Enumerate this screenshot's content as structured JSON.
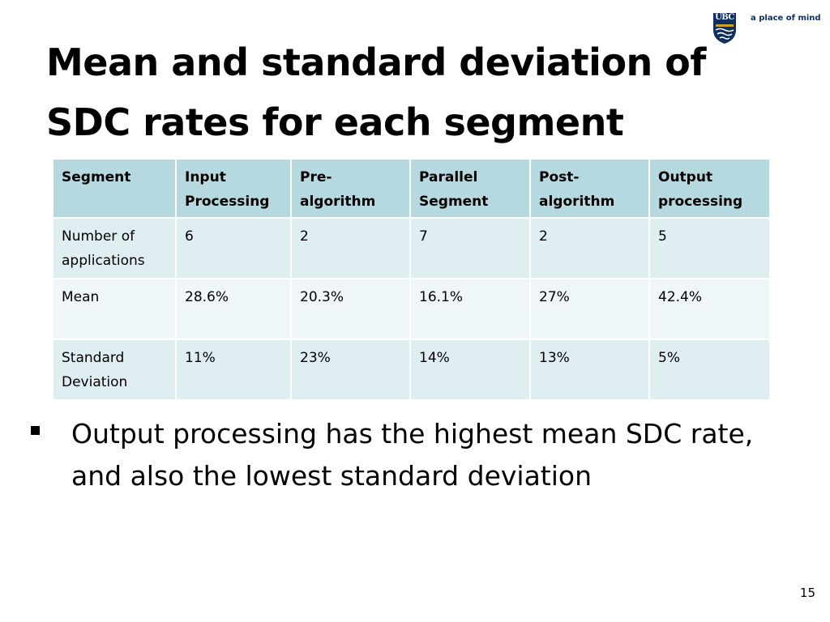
{
  "logo": {
    "text": "UBC",
    "tagline": "a place of mind",
    "colors": {
      "navy": "#0f2f5f",
      "gold": "#c9a227"
    }
  },
  "slide": {
    "title": "Mean and standard deviation of SDC rates for each segment",
    "bullet": "Output processing has the highest mean SDC rate, and also the lowest standard deviation",
    "page_number": "15"
  },
  "table": {
    "headers": [
      "Segment",
      "Input Processing",
      "Pre-algorithm",
      "Parallel Segment",
      "Post-algorithm",
      "Output processing"
    ],
    "rows": [
      [
        "Number of applications",
        "6",
        "2",
        "7",
        "2",
        "5"
      ],
      [
        "Mean",
        "28.6%",
        "20.3%",
        "16.1%",
        "27%",
        "42.4%"
      ],
      [
        "Standard Deviation",
        "11%",
        "23%",
        "14%",
        "13%",
        "5%"
      ]
    ]
  },
  "colors": {
    "header_fill": "#b5d9df",
    "row_fill_dark": "#dfeef1",
    "row_fill_light": "#eef6f8"
  }
}
